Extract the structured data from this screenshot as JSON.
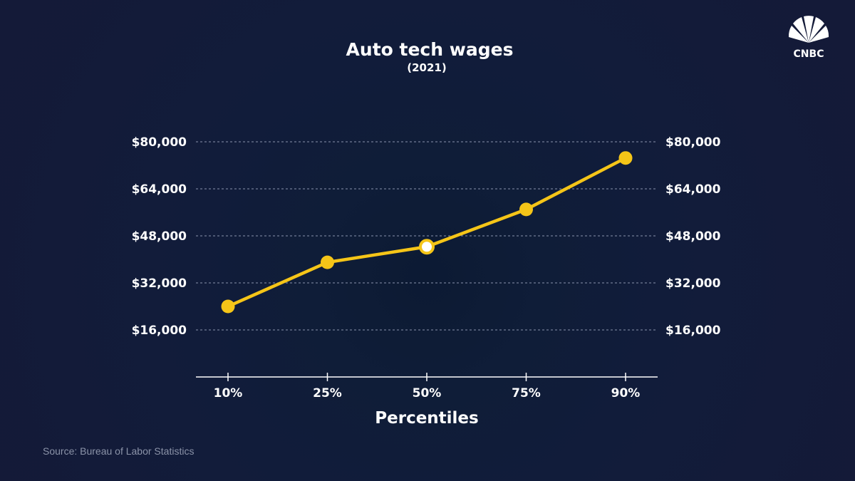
{
  "brand": {
    "name": "CNBC",
    "accent": "#f5c518",
    "background": "#121c3a"
  },
  "chart_data": {
    "type": "line",
    "title": "Auto tech wages",
    "subtitle": "(2021)",
    "xlabel": "Percentiles",
    "ylabel": "",
    "categories": [
      "10%",
      "25%",
      "50%",
      "75%",
      "90%"
    ],
    "series": [
      {
        "values": [
          24000,
          39000,
          44300,
          57000,
          74500
        ]
      }
    ],
    "highlight_index": 2,
    "ylim": [
      0,
      80000
    ],
    "yticks": [
      16000,
      32000,
      48000,
      64000,
      80000
    ],
    "ytick_labels": [
      "$16,000",
      "$32,000",
      "$48,000",
      "$64,000",
      "$80,000"
    ],
    "grid": true,
    "dual_y_axis": true,
    "line_color": "#f5c518"
  },
  "source": "Source: Bureau of Labor Statistics"
}
